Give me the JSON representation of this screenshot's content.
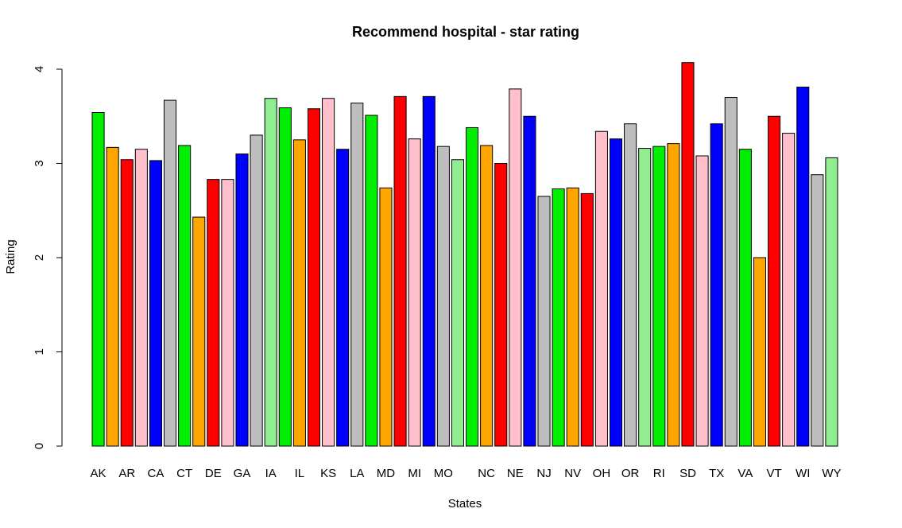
{
  "chart_data": {
    "type": "bar",
    "title": "Recommend hospital - star rating",
    "x_label": "States",
    "y_label": "Rating",
    "categories": [
      "AK",
      null,
      "AR",
      null,
      "CA",
      null,
      "CT",
      null,
      "DE",
      null,
      "GA",
      null,
      "IA",
      null,
      "IL",
      null,
      "KS",
      null,
      "LA",
      null,
      "MD",
      null,
      "MI",
      null,
      "MO",
      null,
      null,
      "NC",
      null,
      "NE",
      null,
      "NJ",
      null,
      "NV",
      null,
      "OH",
      null,
      "OR",
      null,
      "RI",
      null,
      "SD",
      null,
      "TX",
      null,
      "VA",
      null,
      "VT",
      null,
      "WI",
      null,
      "WY"
    ],
    "values": [
      3.54,
      3.17,
      3.04,
      3.15,
      3.03,
      3.67,
      3.19,
      2.43,
      2.83,
      2.83,
      3.1,
      3.3,
      3.69,
      3.59,
      3.25,
      3.58,
      3.69,
      3.15,
      3.64,
      3.51,
      2.74,
      3.71,
      3.26,
      3.71,
      3.18,
      3.04,
      3.38,
      3.19,
      3.0,
      3.79,
      3.5,
      2.65,
      2.73,
      2.74,
      2.68,
      3.34,
      3.26,
      3.42,
      3.16,
      3.18,
      3.21,
      4.07,
      3.08,
      3.42,
      3.7,
      3.15,
      2.0,
      3.5,
      3.32,
      3.81,
      2.88,
      3.06
    ],
    "colors": [
      "#00ee00",
      "#ffa500",
      "#ff0000",
      "#ffc0cb",
      "#0000ff",
      "#bebebe",
      "#00ee00",
      "#ffa500",
      "#ff0000",
      "#ffc0cb",
      "#0000ff",
      "#bebebe",
      "#90ee90",
      "#00ee00",
      "#ffa500",
      "#ff0000",
      "#ffc0cb",
      "#0000ff",
      "#bebebe",
      "#00ee00",
      "#ffa500",
      "#ff0000",
      "#ffc0cb",
      "#0000ff",
      "#bebebe",
      "#90ee90",
      "#00ee00",
      "#ffa500",
      "#ff0000",
      "#ffc0cb",
      "#0000ff",
      "#bebebe",
      "#00ee00",
      "#ffa500",
      "#ff0000",
      "#ffc0cb",
      "#0000ff",
      "#bebebe",
      "#90ee90",
      "#00ee00",
      "#ffa500",
      "#ff0000",
      "#ffc0cb",
      "#0000ff",
      "#bebebe",
      "#00ee00",
      "#ffa500",
      "#ff0000",
      "#ffc0cb",
      "#0000ff",
      "#bebebe",
      "#90ee90"
    ],
    "ylim": [
      0,
      4.07
    ],
    "yticks": [
      0,
      1,
      2,
      3,
      4
    ],
    "grid": false
  }
}
